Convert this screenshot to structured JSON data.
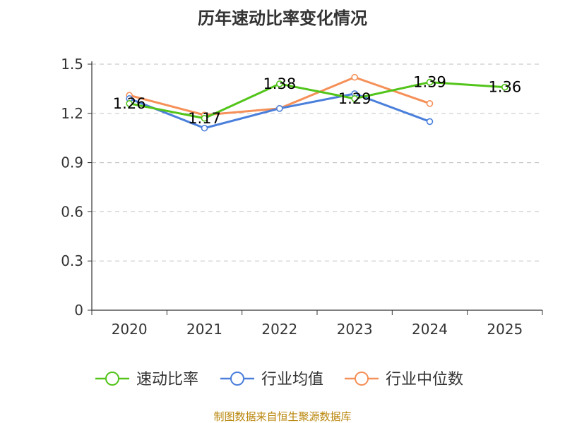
{
  "chart_data": {
    "type": "line",
    "title": "历年速动比率变化情况",
    "categories": [
      "2020",
      "2021",
      "2022",
      "2023",
      "2024",
      "2025"
    ],
    "ylim": [
      0,
      1.5
    ],
    "yticks": [
      "0",
      "0.3",
      "0.6",
      "0.9",
      "1.2",
      "1.5"
    ],
    "grid": true,
    "legend_position": "bottom",
    "series": [
      {
        "name": "速动比率",
        "color": "#52c41a",
        "values": [
          1.26,
          1.17,
          1.38,
          1.29,
          1.39,
          1.36
        ],
        "labels": [
          "1.26",
          "1.17",
          "1.38",
          "1.29",
          "1.39",
          "1.36"
        ]
      },
      {
        "name": "行业均值",
        "color": "#4a7fdb",
        "values": [
          1.29,
          1.11,
          1.23,
          1.32,
          1.15,
          null
        ]
      },
      {
        "name": "行业中位数",
        "color": "#f59058",
        "values": [
          1.31,
          1.19,
          1.23,
          1.42,
          1.26,
          null
        ]
      }
    ],
    "source": "制图数据来自恒生聚源数据库"
  }
}
